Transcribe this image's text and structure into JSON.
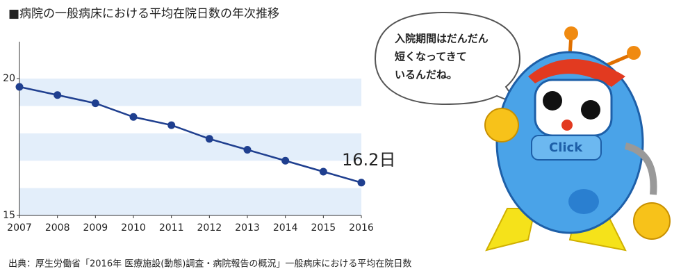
{
  "title": "■病院の一般病床における平均在院日数の年次推移",
  "source": "出典：厚生労働省「2016年 医療施設(動態)調査・病院報告の概況」一般病床における平均在院日数",
  "speech_bubble": {
    "lines": [
      "入院期間はだんだん",
      "短くなってきて",
      "いるんだね。"
    ]
  },
  "mascot_label": "Click",
  "chart_data": {
    "type": "line",
    "categories": [
      "2007",
      "2008",
      "2009",
      "2010",
      "2011",
      "2012",
      "2013",
      "2014",
      "2015",
      "2016"
    ],
    "series": [
      {
        "name": null,
        "color": "#1f3f8f",
        "values": [
          19.7,
          19.4,
          19.1,
          18.6,
          18.3,
          17.8,
          17.4,
          17.0,
          16.6,
          16.2
        ],
        "value_labels": [
          null,
          null,
          null,
          null,
          null,
          null,
          null,
          null,
          null,
          "16.2日"
        ]
      }
    ],
    "ylim": [
      15,
      21.35
    ],
    "yticks": [
      15,
      20
    ],
    "band_color": "#e3eefa"
  }
}
